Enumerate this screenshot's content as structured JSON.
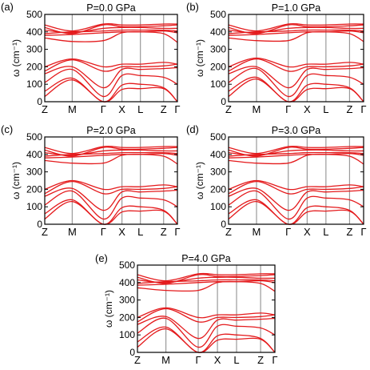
{
  "figure": {
    "colors": {
      "band": "#e41a1c",
      "divider": "#9a9a9a",
      "axis": "#000000"
    }
  },
  "chart_data": [
    {
      "type": "line",
      "panel_label": "(a)",
      "title": "P=0.0 GPa",
      "ylabel": "ω (cm⁻¹)",
      "ylim": [
        0,
        500
      ],
      "yticks": [
        0,
        100,
        200,
        300,
        400,
        500
      ],
      "high_symmetry_points": [
        "Z",
        "M",
        "Γ",
        "X",
        "L",
        "Z",
        "Γ"
      ],
      "grid": false,
      "series": [
        {
          "y": [
            30,
            125,
            0,
            70,
            75,
            75,
            0
          ]
        },
        {
          "y": [
            60,
            135,
            0,
            95,
            100,
            80,
            0
          ]
        },
        {
          "y": [
            110,
            185,
            30,
            150,
            150,
            140,
            100
          ]
        },
        {
          "y": [
            160,
            200,
            80,
            185,
            185,
            190,
            195
          ]
        },
        {
          "y": [
            175,
            240,
            175,
            200,
            200,
            205,
            215
          ]
        },
        {
          "y": [
            200,
            245,
            200,
            215,
            215,
            225,
            215
          ]
        },
        {
          "y": [
            365,
            345,
            350,
            395,
            400,
            390,
            340
          ]
        },
        {
          "y": [
            380,
            385,
            395,
            400,
            400,
            405,
            395
          ]
        },
        {
          "y": [
            390,
            400,
            405,
            410,
            410,
            410,
            405
          ]
        },
        {
          "y": [
            410,
            395,
            420,
            425,
            425,
            420,
            420
          ]
        },
        {
          "y": [
            425,
            390,
            440,
            430,
            430,
            435,
            440
          ]
        },
        {
          "y": [
            440,
            405,
            445,
            440,
            440,
            445,
            445
          ]
        }
      ]
    },
    {
      "type": "line",
      "panel_label": "(b)",
      "title": "P=1.0 GPa",
      "ylabel": "ω (cm⁻¹)",
      "ylim": [
        0,
        500
      ],
      "yticks": [
        0,
        100,
        200,
        300,
        400,
        500
      ],
      "high_symmetry_points": [
        "Z",
        "M",
        "Γ",
        "X",
        "L",
        "Z",
        "Γ"
      ],
      "grid": false,
      "series": [
        {
          "y": [
            30,
            130,
            0,
            70,
            75,
            75,
            0
          ]
        },
        {
          "y": [
            60,
            140,
            0,
            95,
            100,
            80,
            0
          ]
        },
        {
          "y": [
            110,
            190,
            30,
            150,
            150,
            140,
            100
          ]
        },
        {
          "y": [
            160,
            200,
            80,
            185,
            185,
            190,
            195
          ]
        },
        {
          "y": [
            175,
            245,
            175,
            200,
            200,
            205,
            215
          ]
        },
        {
          "y": [
            200,
            250,
            200,
            215,
            215,
            225,
            215
          ]
        },
        {
          "y": [
            365,
            350,
            350,
            395,
            400,
            390,
            345
          ]
        },
        {
          "y": [
            380,
            385,
            395,
            400,
            400,
            405,
            395
          ]
        },
        {
          "y": [
            390,
            400,
            405,
            410,
            410,
            410,
            405
          ]
        },
        {
          "y": [
            410,
            395,
            420,
            425,
            425,
            420,
            420
          ]
        },
        {
          "y": [
            425,
            390,
            440,
            430,
            430,
            435,
            440
          ]
        },
        {
          "y": [
            440,
            405,
            445,
            440,
            440,
            445,
            445
          ]
        }
      ]
    },
    {
      "type": "line",
      "panel_label": "(c)",
      "title": "P=2.0 GPa",
      "ylabel": "ω (cm⁻¹)",
      "ylim": [
        0,
        500
      ],
      "yticks": [
        0,
        100,
        200,
        300,
        400,
        500
      ],
      "high_symmetry_points": [
        "Z",
        "M",
        "Γ",
        "X",
        "L",
        "Z",
        "Γ"
      ],
      "grid": false,
      "series": [
        {
          "y": [
            30,
            130,
            0,
            70,
            75,
            75,
            0
          ]
        },
        {
          "y": [
            60,
            140,
            0,
            95,
            100,
            80,
            0
          ]
        },
        {
          "y": [
            110,
            190,
            30,
            150,
            150,
            140,
            100
          ]
        },
        {
          "y": [
            160,
            205,
            80,
            185,
            185,
            190,
            195
          ]
        },
        {
          "y": [
            175,
            245,
            175,
            200,
            200,
            205,
            215
          ]
        },
        {
          "y": [
            200,
            250,
            200,
            215,
            215,
            225,
            215
          ]
        },
        {
          "y": [
            365,
            350,
            350,
            395,
            400,
            390,
            345
          ]
        },
        {
          "y": [
            380,
            385,
            395,
            400,
            400,
            405,
            395
          ]
        },
        {
          "y": [
            390,
            400,
            405,
            410,
            410,
            410,
            405
          ]
        },
        {
          "y": [
            410,
            395,
            420,
            425,
            425,
            420,
            420
          ]
        },
        {
          "y": [
            425,
            390,
            440,
            430,
            430,
            435,
            440
          ]
        },
        {
          "y": [
            440,
            405,
            445,
            440,
            440,
            445,
            445
          ]
        }
      ]
    },
    {
      "type": "line",
      "panel_label": "(d)",
      "title": "P=3.0 GPa",
      "ylabel": "ω (cm⁻¹)",
      "ylim": [
        0,
        500
      ],
      "yticks": [
        0,
        100,
        200,
        300,
        400,
        500
      ],
      "high_symmetry_points": [
        "Z",
        "M",
        "Γ",
        "X",
        "L",
        "Z",
        "Γ"
      ],
      "grid": false,
      "series": [
        {
          "y": [
            30,
            130,
            0,
            70,
            75,
            75,
            0
          ]
        },
        {
          "y": [
            60,
            140,
            0,
            95,
            100,
            80,
            0
          ]
        },
        {
          "y": [
            110,
            190,
            30,
            150,
            150,
            140,
            100
          ]
        },
        {
          "y": [
            160,
            205,
            80,
            185,
            185,
            190,
            195
          ]
        },
        {
          "y": [
            175,
            245,
            175,
            200,
            200,
            205,
            215
          ]
        },
        {
          "y": [
            200,
            250,
            200,
            215,
            215,
            225,
            215
          ]
        },
        {
          "y": [
            365,
            350,
            350,
            395,
            400,
            390,
            345
          ]
        },
        {
          "y": [
            380,
            385,
            395,
            400,
            400,
            405,
            395
          ]
        },
        {
          "y": [
            390,
            400,
            405,
            410,
            410,
            410,
            405
          ]
        },
        {
          "y": [
            410,
            395,
            420,
            425,
            425,
            420,
            420
          ]
        },
        {
          "y": [
            425,
            390,
            440,
            430,
            430,
            435,
            440
          ]
        },
        {
          "y": [
            440,
            405,
            445,
            440,
            440,
            445,
            445
          ]
        }
      ]
    },
    {
      "type": "line",
      "panel_label": "(e)",
      "title": "P=4.0 GPa",
      "ylabel": "ω (cm⁻¹)",
      "ylim": [
        0,
        500
      ],
      "yticks": [
        0,
        100,
        200,
        300,
        400,
        500
      ],
      "high_symmetry_points": [
        "Z",
        "M",
        "Γ",
        "X",
        "L",
        "Z",
        "Γ"
      ],
      "grid": false,
      "series": [
        {
          "y": [
            30,
            135,
            0,
            70,
            75,
            75,
            0
          ]
        },
        {
          "y": [
            60,
            145,
            0,
            95,
            100,
            80,
            0
          ]
        },
        {
          "y": [
            110,
            195,
            30,
            150,
            150,
            140,
            100
          ]
        },
        {
          "y": [
            160,
            205,
            80,
            185,
            185,
            190,
            195
          ]
        },
        {
          "y": [
            175,
            250,
            175,
            200,
            200,
            205,
            215
          ]
        },
        {
          "y": [
            200,
            255,
            200,
            215,
            215,
            225,
            215
          ]
        },
        {
          "y": [
            370,
            355,
            355,
            400,
            405,
            395,
            350
          ]
        },
        {
          "y": [
            385,
            390,
            400,
            405,
            405,
            410,
            400
          ]
        },
        {
          "y": [
            395,
            405,
            410,
            415,
            415,
            415,
            410
          ]
        },
        {
          "y": [
            415,
            400,
            425,
            430,
            430,
            425,
            425
          ]
        },
        {
          "y": [
            430,
            395,
            445,
            435,
            435,
            440,
            445
          ]
        },
        {
          "y": [
            445,
            410,
            450,
            445,
            445,
            450,
            450
          ]
        }
      ]
    }
  ]
}
